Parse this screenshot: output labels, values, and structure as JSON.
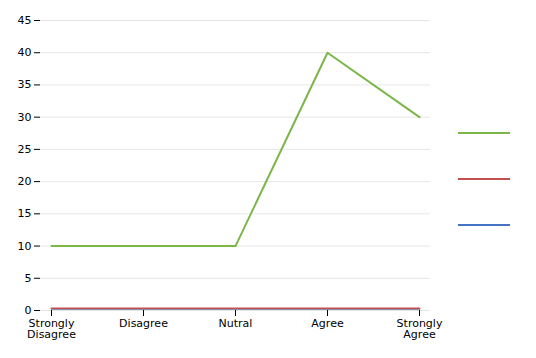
{
  "chart_data": {
    "type": "line",
    "categories": [
      "Strongly\nDisagree",
      "Disagree",
      "Nutral",
      "Agree",
      "Strongly\nAgree"
    ],
    "series": [
      {
        "color": "#7ab648",
        "values": [
          10,
          10,
          10,
          40,
          30
        ]
      },
      {
        "color": "#c0504d",
        "values": [
          0.3,
          0.3,
          0.3,
          0.3,
          0.3
        ]
      },
      {
        "color": "#4472c4",
        "values": [
          0.0,
          0.0,
          0.0,
          0.0,
          0.0
        ]
      }
    ],
    "ylim": [
      0,
      45
    ],
    "yticks": [
      0,
      5,
      10,
      15,
      20,
      25,
      30,
      35,
      40,
      45
    ],
    "grid": true,
    "legend": "right"
  }
}
